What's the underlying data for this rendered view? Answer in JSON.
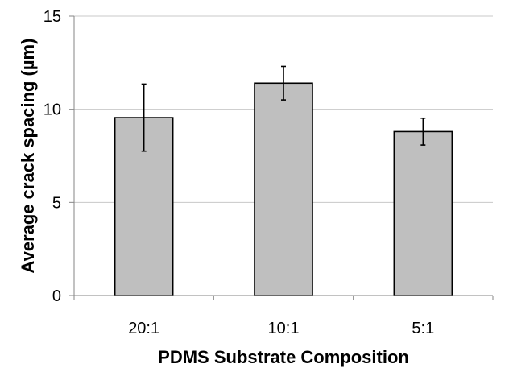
{
  "chart_data": {
    "type": "bar",
    "title": "",
    "xlabel": "PDMS Substrate Composition",
    "ylabel": "Average crack spacing (µm)",
    "categories": [
      "20:1",
      "10:1",
      "5:1"
    ],
    "values": [
      9.55,
      11.4,
      8.8
    ],
    "error": [
      1.8,
      0.9,
      0.72
    ],
    "ylim": [
      0,
      15
    ],
    "yticks": [
      0,
      5,
      10,
      15
    ],
    "grid": true,
    "legend": "none",
    "colors": {
      "bar_fill": "#bfbfbf",
      "bar_stroke": "#000000",
      "grid": "#c8c8c8",
      "axis": "#868686"
    }
  }
}
